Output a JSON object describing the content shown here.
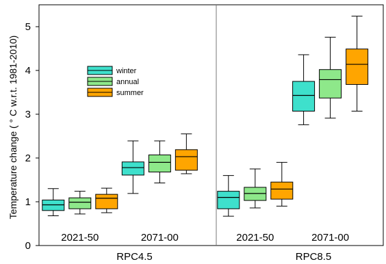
{
  "chart_data": {
    "type": "boxplot",
    "ylabel": "Temperature change ( ° C w.r.t. 1981-2010)",
    "ylim": [
      0,
      5.5
    ],
    "yticks": [
      0,
      1,
      2,
      3,
      4,
      5
    ],
    "scenarios": [
      "RPC4.5",
      "RPC8.5"
    ],
    "periods": [
      "2021-50",
      "2071-00"
    ],
    "legend_position": "upper-left",
    "series": [
      {
        "name": "winter",
        "color": "#3ee0cc"
      },
      {
        "name": "annual",
        "color": "#8ee88a"
      },
      {
        "name": "summer",
        "color": "#ffa500"
      }
    ],
    "boxes": [
      {
        "scenario": "RPC4.5",
        "period": "2021-50",
        "season": "winter",
        "min": 0.68,
        "q1": 0.8,
        "median": 0.93,
        "q3": 1.04,
        "max": 1.3
      },
      {
        "scenario": "RPC4.5",
        "period": "2021-50",
        "season": "annual",
        "min": 0.72,
        "q1": 0.84,
        "median": 0.99,
        "q3": 1.09,
        "max": 1.24
      },
      {
        "scenario": "RPC4.5",
        "period": "2021-50",
        "season": "summer",
        "min": 0.75,
        "q1": 0.84,
        "median": 1.08,
        "q3": 1.17,
        "max": 1.31
      },
      {
        "scenario": "RPC4.5",
        "period": "2071-00",
        "season": "winter",
        "min": 1.19,
        "q1": 1.61,
        "median": 1.78,
        "q3": 1.91,
        "max": 2.39
      },
      {
        "scenario": "RPC4.5",
        "period": "2071-00",
        "season": "annual",
        "min": 1.43,
        "q1": 1.68,
        "median": 1.9,
        "q3": 2.07,
        "max": 2.39
      },
      {
        "scenario": "RPC4.5",
        "period": "2071-00",
        "season": "summer",
        "min": 1.64,
        "q1": 1.72,
        "median": 2.03,
        "q3": 2.19,
        "max": 2.55
      },
      {
        "scenario": "RPC8.5",
        "period": "2021-50",
        "season": "winter",
        "min": 0.67,
        "q1": 0.84,
        "median": 1.1,
        "q3": 1.24,
        "max": 1.6
      },
      {
        "scenario": "RPC8.5",
        "period": "2021-50",
        "season": "annual",
        "min": 0.86,
        "q1": 1.03,
        "median": 1.19,
        "q3": 1.33,
        "max": 1.75
      },
      {
        "scenario": "RPC8.5",
        "period": "2021-50",
        "season": "summer",
        "min": 0.9,
        "q1": 1.06,
        "median": 1.29,
        "q3": 1.45,
        "max": 1.9
      },
      {
        "scenario": "RPC8.5",
        "period": "2071-00",
        "season": "winter",
        "min": 2.76,
        "q1": 3.07,
        "median": 3.43,
        "q3": 3.75,
        "max": 4.36
      },
      {
        "scenario": "RPC8.5",
        "period": "2071-00",
        "season": "annual",
        "min": 2.91,
        "q1": 3.37,
        "median": 3.79,
        "q3": 4.02,
        "max": 4.76
      },
      {
        "scenario": "RPC8.5",
        "period": "2071-00",
        "season": "summer",
        "min": 3.07,
        "q1": 3.68,
        "median": 4.14,
        "q3": 4.49,
        "max": 5.24
      }
    ]
  }
}
